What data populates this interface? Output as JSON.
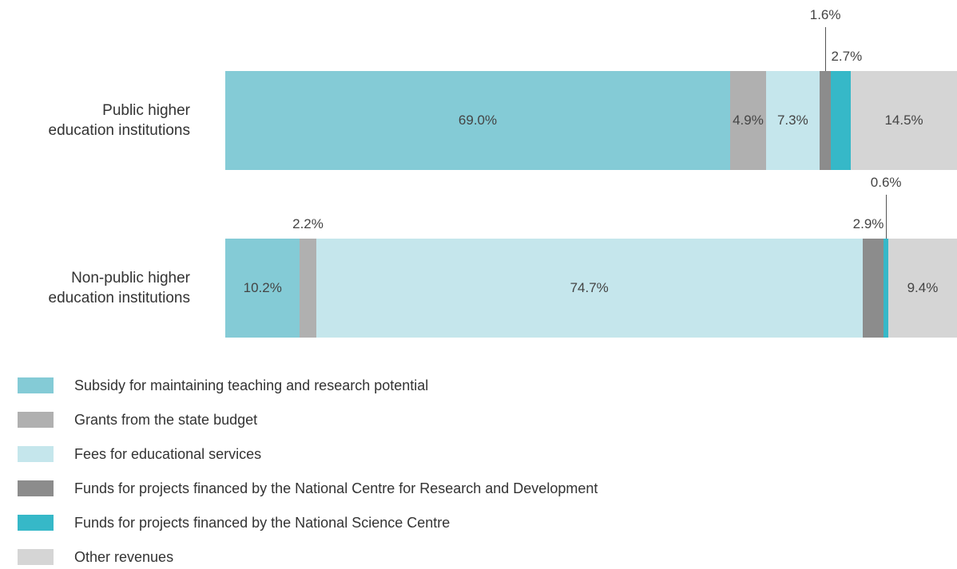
{
  "chart_data": {
    "type": "stacked_bar_horizontal",
    "categories": [
      "Public higher\neducation institutions",
      "Non-public higher\neducation institutions"
    ],
    "series": [
      {
        "name": "Subsidy for maintaining teaching and research potential",
        "color": "#84cbd6",
        "values": [
          69.0,
          10.2
        ],
        "value_labels": [
          "69.0%",
          "10.2%"
        ]
      },
      {
        "name": "Grants from the state budget",
        "color": "#b0b0b0",
        "values": [
          4.9,
          2.2
        ],
        "value_labels": [
          "4.9%",
          "2.2%"
        ]
      },
      {
        "name": "Fees for educational services",
        "color": "#c5e6ec",
        "values": [
          7.3,
          74.7
        ],
        "value_labels": [
          "7.3%",
          "74.7%"
        ]
      },
      {
        "name": "Funds for projects financed by the National Centre for Research and Development",
        "color": "#8c8c8c",
        "values": [
          1.6,
          2.9
        ],
        "value_labels": [
          "1.6%",
          "2.9%"
        ]
      },
      {
        "name": "Funds for projects financed by the National Science Centre",
        "color": "#36b8c8",
        "values": [
          2.7,
          0.6
        ],
        "value_labels": [
          "2.7%",
          "0.6%"
        ]
      },
      {
        "name": "Other revenues",
        "color": "#d5d5d5",
        "values": [
          14.5,
          9.4
        ],
        "value_labels": [
          "14.5%",
          "9.4%"
        ]
      }
    ],
    "xlim": [
      0,
      100
    ],
    "legend": "bottom-left"
  }
}
